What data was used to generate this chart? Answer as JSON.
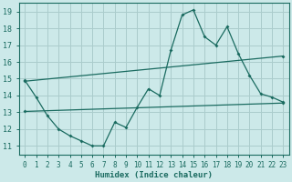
{
  "title": "",
  "xlabel": "Humidex (Indice chaleur)",
  "ylabel": "",
  "xlim": [
    -0.5,
    23.5
  ],
  "ylim": [
    10.5,
    19.5
  ],
  "xticks": [
    0,
    1,
    2,
    3,
    4,
    5,
    6,
    7,
    8,
    9,
    10,
    11,
    12,
    13,
    14,
    15,
    16,
    17,
    18,
    19,
    20,
    21,
    22,
    23
  ],
  "yticks": [
    11,
    12,
    13,
    14,
    15,
    16,
    17,
    18,
    19
  ],
  "bg_color": "#cce9e9",
  "grid_color": "#aacccc",
  "line_color": "#1a6b60",
  "line1_x": [
    0,
    1,
    2,
    3,
    4,
    5,
    6,
    7,
    8,
    9,
    10,
    11,
    12,
    13,
    14,
    15,
    16,
    17,
    18,
    19,
    20,
    21,
    22,
    23
  ],
  "line1_y": [
    14.9,
    13.9,
    12.8,
    12.0,
    11.6,
    11.3,
    11.0,
    11.0,
    12.4,
    12.1,
    13.3,
    14.4,
    14.0,
    16.7,
    18.8,
    19.1,
    17.5,
    17.0,
    18.1,
    16.5,
    15.2,
    14.1,
    13.9,
    13.6
  ],
  "line2_x": [
    0,
    23
  ],
  "line2_y": [
    13.05,
    13.55
  ],
  "line3_x": [
    0,
    23
  ],
  "line3_y": [
    14.85,
    16.35
  ]
}
